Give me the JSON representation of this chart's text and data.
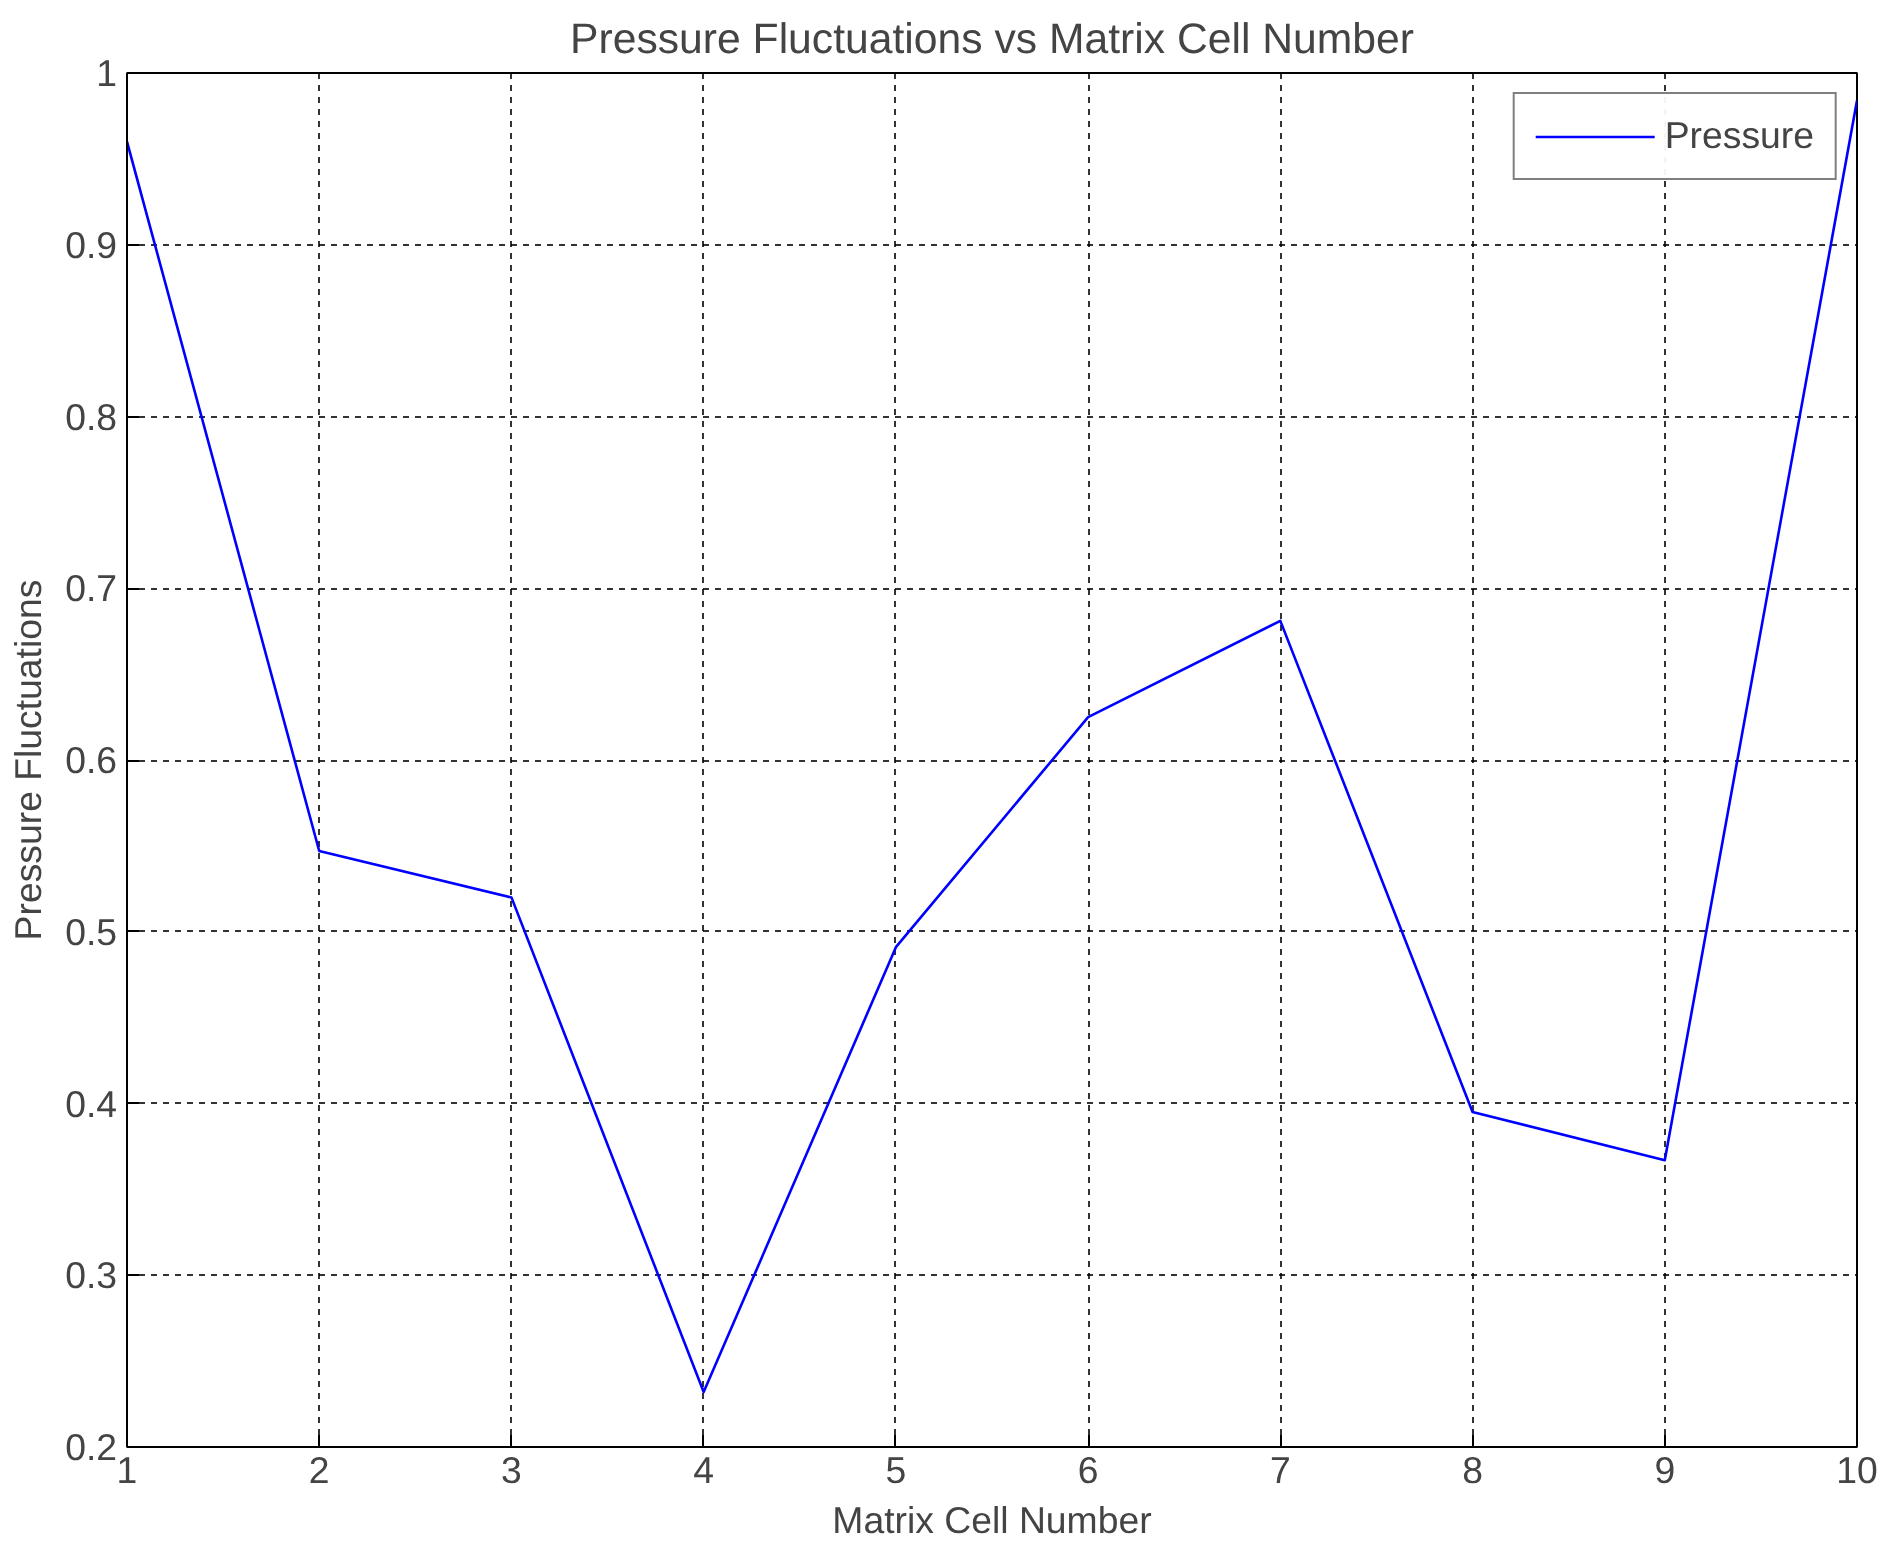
{
  "chart_data": {
    "type": "line",
    "title": "Pressure Fluctuations vs Matrix Cell Number",
    "xlabel": "Matrix Cell Number",
    "ylabel": "Pressure Fluctuations",
    "x": [
      1,
      2,
      3,
      4,
      5,
      6,
      7,
      8,
      9,
      10
    ],
    "series": [
      {
        "name": "Pressure",
        "color": "#0000ff",
        "values": [
          0.96,
          0.547,
          0.52,
          0.232,
          0.491,
          0.625,
          0.681,
          0.395,
          0.367,
          0.984
        ]
      }
    ],
    "xlim": [
      1,
      10
    ],
    "xticks": [
      1,
      2,
      3,
      4,
      5,
      6,
      7,
      8,
      9,
      10
    ],
    "ylim": [
      0.2,
      1
    ],
    "yticks": [
      0.2,
      0.3,
      0.4,
      0.5,
      0.6,
      0.7,
      0.8,
      0.9,
      1
    ],
    "grid": true,
    "legend": "top right",
    "line_style": "solid",
    "marker": "none"
  }
}
